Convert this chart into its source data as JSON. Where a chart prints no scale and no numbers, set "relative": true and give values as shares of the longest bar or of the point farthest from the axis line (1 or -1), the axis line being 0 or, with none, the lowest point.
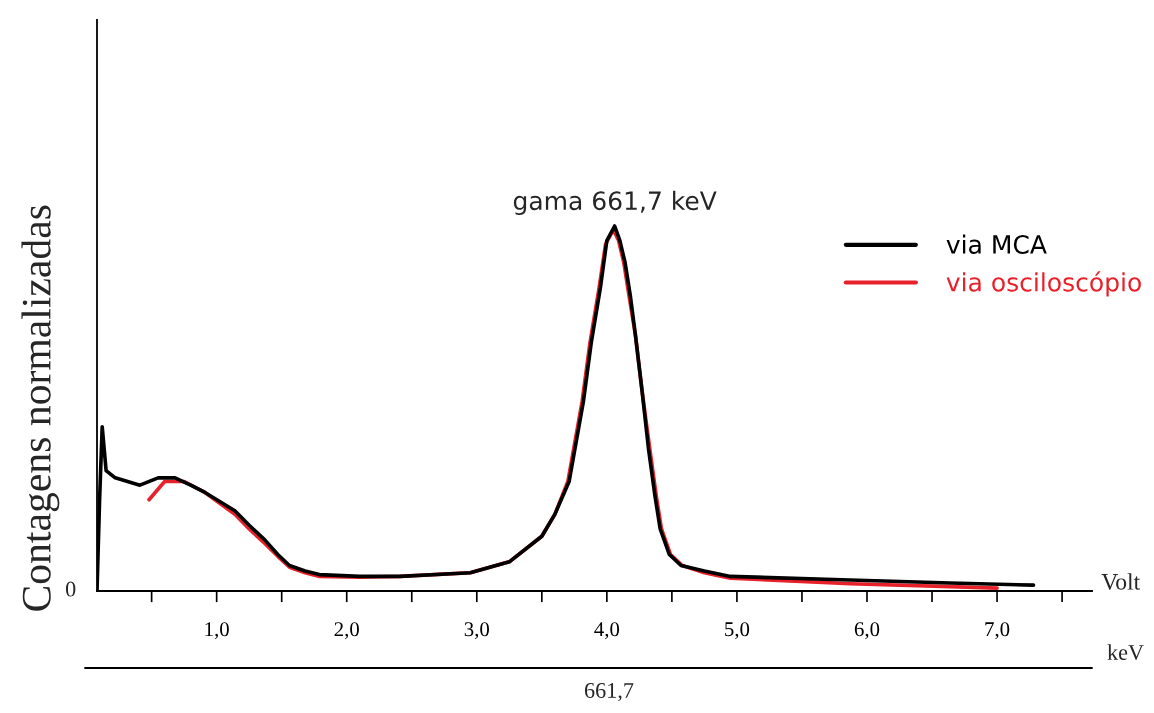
{
  "chart_data": {
    "type": "line",
    "relative": true,
    "xlabel": "Volt",
    "ylabel": "Contagens normalizadas",
    "xlim": [
      0.08,
      7.73
    ],
    "xticks": [
      {
        "value": 0.5,
        "label": null
      },
      {
        "value": 1.0,
        "label": "1,0"
      },
      {
        "value": 1.5,
        "label": null
      },
      {
        "value": 2.0,
        "label": "2,0"
      },
      {
        "value": 2.5,
        "label": null
      },
      {
        "value": 3.0,
        "label": "3,0"
      },
      {
        "value": 3.5,
        "label": null
      },
      {
        "value": 4.0,
        "label": "4,0"
      },
      {
        "value": 4.5,
        "label": null
      },
      {
        "value": 5.0,
        "label": "5,0"
      },
      {
        "value": 5.5,
        "label": null
      },
      {
        "value": 6.0,
        "label": "6,0"
      },
      {
        "value": 6.5,
        "label": null
      },
      {
        "value": 7.0,
        "label": "7,0"
      },
      {
        "value": 7.5,
        "label": null
      }
    ],
    "legend": "right",
    "annotations": [
      {
        "text": "gama 661,7 keV",
        "x": 4.06,
        "y": 1.0
      },
      "0",
      "keV",
      "661,7"
    ],
    "series": [
      {
        "name": "via MCA",
        "color": "#000000",
        "x": [
          0.08,
          0.1,
          0.12,
          0.15,
          0.22,
          0.41,
          0.55,
          0.68,
          0.8,
          0.91,
          1.14,
          1.25,
          1.37,
          1.47,
          1.56,
          1.68,
          1.79,
          2.1,
          2.41,
          2.95,
          3.25,
          3.5,
          3.6,
          3.71,
          3.82,
          3.88,
          3.95,
          4.0,
          4.06,
          4.1,
          4.14,
          4.18,
          4.22,
          4.27,
          4.32,
          4.37,
          4.41,
          4.48,
          4.57,
          4.75,
          4.95,
          5.87,
          6.64,
          7.28
        ],
        "values": [
          0,
          0.25,
          0.45,
          0.33,
          0.31,
          0.29,
          0.31,
          0.31,
          0.29,
          0.27,
          0.22,
          0.18,
          0.14,
          0.1,
          0.07,
          0.055,
          0.045,
          0.04,
          0.04,
          0.05,
          0.08,
          0.15,
          0.21,
          0.3,
          0.52,
          0.68,
          0.83,
          0.96,
          1.0,
          0.96,
          0.9,
          0.81,
          0.7,
          0.55,
          0.39,
          0.26,
          0.17,
          0.1,
          0.07,
          0.055,
          0.04,
          0.03,
          0.022,
          0.016
        ]
      },
      {
        "name": "via osciloscópio",
        "color": "#e8202a",
        "x": [
          0.48,
          0.6,
          0.75,
          0.91,
          1.14,
          1.25,
          1.37,
          1.47,
          1.56,
          1.68,
          1.79,
          2.1,
          2.41,
          2.95,
          3.25,
          3.5,
          3.6,
          3.7,
          3.81,
          3.87,
          3.94,
          3.99,
          4.05,
          4.09,
          4.13,
          4.17,
          4.22,
          4.27,
          4.33,
          4.38,
          4.42,
          4.49,
          4.58,
          4.75,
          4.95,
          5.87,
          6.64,
          7.0
        ],
        "values": [
          0.25,
          0.3,
          0.3,
          0.27,
          0.21,
          0.17,
          0.13,
          0.095,
          0.065,
          0.05,
          0.04,
          0.038,
          0.04,
          0.05,
          0.08,
          0.15,
          0.21,
          0.3,
          0.52,
          0.68,
          0.83,
          0.95,
          0.99,
          0.96,
          0.9,
          0.81,
          0.7,
          0.55,
          0.39,
          0.26,
          0.17,
          0.1,
          0.07,
          0.05,
          0.035,
          0.02,
          0.012,
          0.008
        ]
      }
    ]
  }
}
